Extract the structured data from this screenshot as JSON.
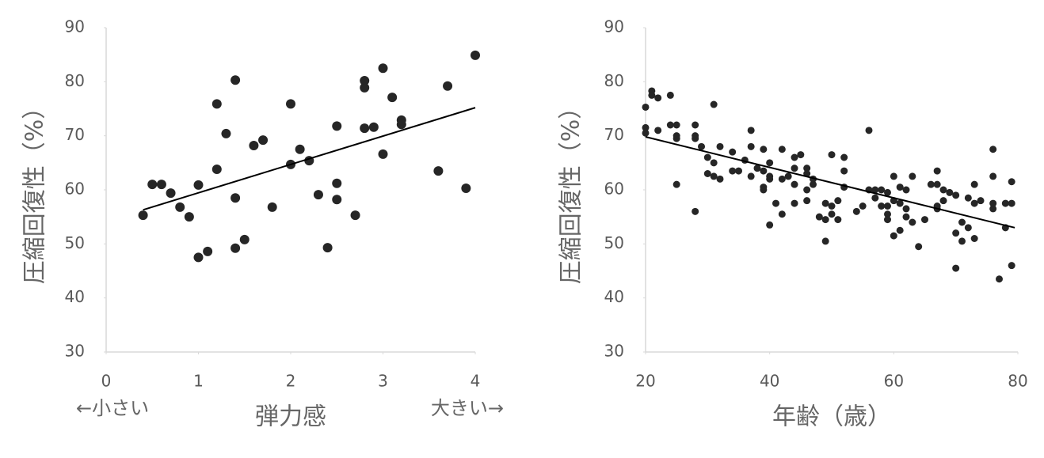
{
  "chart_data": [
    {
      "type": "scatter",
      "xlabel": "弾力感",
      "ylabel": "圧縮回復性（%）",
      "annotations": [
        "←小さい",
        "大きい→"
      ],
      "color": "#262626",
      "x": [
        0.4,
        0.5,
        0.6,
        0.7,
        0.8,
        0.9,
        1.0,
        1.0,
        1.1,
        1.2,
        1.2,
        1.3,
        1.4,
        1.4,
        1.4,
        1.5,
        1.6,
        1.7,
        1.8,
        2.0,
        2.0,
        2.1,
        2.2,
        2.3,
        2.4,
        2.5,
        2.5,
        2.5,
        2.7,
        2.8,
        2.8,
        2.8,
        2.9,
        3.0,
        3.0,
        3.1,
        3.2,
        3.2,
        3.6,
        3.7,
        3.9,
        4.0
      ],
      "values": [
        55.3,
        61.0,
        61.0,
        59.4,
        56.8,
        55.0,
        60.9,
        47.5,
        48.6,
        75.9,
        63.8,
        70.4,
        80.3,
        58.5,
        49.2,
        50.8,
        68.2,
        69.2,
        56.8,
        75.9,
        64.7,
        67.5,
        65.4,
        59.1,
        49.3,
        71.8,
        61.2,
        58.2,
        55.3,
        80.2,
        78.9,
        71.4,
        71.6,
        82.5,
        66.6,
        77.1,
        72.9,
        72.1,
        63.5,
        79.2,
        60.3,
        84.9
      ],
      "trendline": {
        "x": [
          0.4,
          4.0
        ],
        "values": [
          56.3,
          75.2
        ]
      },
      "xlim": [
        0,
        4
      ],
      "xticks": [
        0,
        1,
        2,
        3,
        4
      ],
      "ylim": [
        30,
        90
      ],
      "yticks": [
        30,
        40,
        50,
        60,
        70,
        80,
        90
      ]
    },
    {
      "type": "scatter",
      "xlabel": "年齢（歳）",
      "ylabel": "圧縮回復性（%）",
      "color": "#262626",
      "x": [
        20,
        20,
        20,
        21,
        21,
        22,
        22,
        24,
        24,
        25,
        25,
        25,
        25,
        28,
        28,
        28,
        28,
        29,
        30,
        30,
        31,
        31,
        31,
        32,
        32,
        34,
        34,
        35,
        36,
        37,
        37,
        37,
        38,
        39,
        39,
        39,
        39,
        40,
        40,
        40,
        40,
        41,
        42,
        42,
        42,
        43,
        44,
        44,
        44,
        44,
        45,
        46,
        46,
        46,
        46,
        47,
        47,
        48,
        49,
        49,
        49,
        50,
        50,
        50,
        51,
        51,
        52,
        52,
        52,
        54,
        55,
        56,
        56,
        57,
        57,
        58,
        58,
        59,
        59,
        59,
        59,
        60,
        60,
        60,
        61,
        61,
        61,
        62,
        62,
        62,
        63,
        63,
        64,
        65,
        66,
        67,
        67,
        67,
        67,
        68,
        68,
        69,
        70,
        70,
        70,
        71,
        71,
        72,
        72,
        73,
        73,
        73,
        74,
        76,
        76,
        76,
        76,
        77,
        78,
        78,
        79,
        79,
        79
      ],
      "values": [
        75.3,
        71.5,
        70.5,
        78.3,
        77.5,
        77,
        71,
        77.5,
        72,
        72,
        70,
        69.5,
        61,
        72,
        70,
        69.5,
        56,
        68,
        66,
        63,
        75.8,
        65,
        62.5,
        68,
        62,
        67,
        63.5,
        63.5,
        65.5,
        71,
        68,
        62.5,
        64,
        67.5,
        63.5,
        60.5,
        60,
        65,
        62.5,
        62,
        53.5,
        57.5,
        67.5,
        62,
        55.5,
        62.5,
        66,
        64,
        61,
        57.5,
        66.5,
        64,
        63,
        60,
        58,
        62,
        61,
        55,
        57.5,
        54.5,
        50.5,
        66.5,
        57,
        55.5,
        58,
        54.5,
        66,
        63.5,
        60.5,
        56,
        57,
        71,
        60,
        60,
        58.5,
        60,
        57,
        59.5,
        57,
        55.5,
        54.5,
        62.5,
        58,
        51.5,
        60.5,
        57.5,
        52.5,
        60,
        56.5,
        55,
        62.5,
        54,
        49.5,
        54.5,
        61,
        63.5,
        61,
        57,
        56.5,
        60,
        58,
        59.5,
        59,
        52,
        45.5,
        54,
        50.5,
        58.5,
        53,
        61,
        57.5,
        51,
        58,
        67.5,
        62.5,
        57.5,
        56.5,
        43.5,
        57.5,
        53,
        61.5,
        57.5,
        46
      ],
      "trendline": {
        "x": [
          20,
          79.5
        ],
        "values": [
          69.8,
          53
        ]
      },
      "xlim": [
        20,
        80
      ],
      "xticks": [
        20,
        40,
        60,
        80
      ],
      "ylim": [
        30,
        90
      ],
      "yticks": [
        30,
        40,
        50,
        60,
        70,
        80,
        90
      ]
    }
  ]
}
